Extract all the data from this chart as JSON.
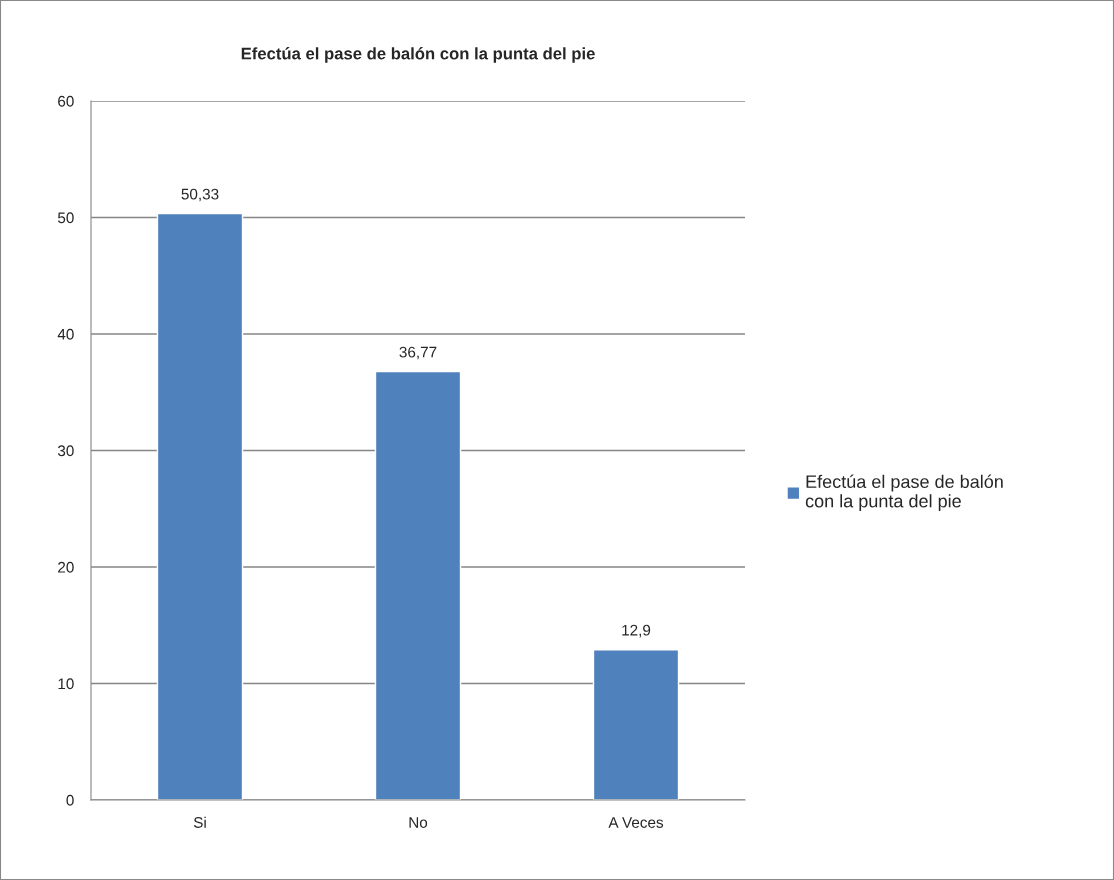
{
  "chart_data": {
    "type": "bar",
    "title": "Efectúa el pase de balón con la punta del pie",
    "categories": [
      "Si",
      "No",
      "A Veces"
    ],
    "series": [
      {
        "name": "Efectúa el pase de balón con la punta del pie",
        "color": "#4f81bd",
        "values": [
          50.33,
          36.77,
          12.9
        ],
        "value_labels": [
          "50,33",
          "36,77",
          "12,9"
        ]
      }
    ],
    "ylim": [
      0,
      60
    ],
    "yticks": [
      0,
      10,
      20,
      30,
      40,
      50,
      60
    ],
    "grid": "y",
    "legend": "right"
  }
}
